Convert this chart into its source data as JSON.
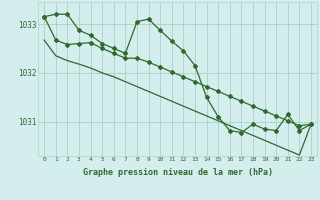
{
  "hours": [
    0,
    1,
    2,
    3,
    4,
    5,
    6,
    7,
    8,
    9,
    10,
    11,
    12,
    13,
    14,
    15,
    16,
    17,
    18,
    19,
    20,
    21,
    22,
    23
  ],
  "line_main": [
    1033.15,
    1033.2,
    1033.2,
    1032.87,
    1032.77,
    1032.6,
    1032.5,
    1032.4,
    1033.05,
    1033.1,
    1032.87,
    1032.65,
    1032.45,
    1032.15,
    1031.5,
    1031.1,
    1030.82,
    1030.78,
    1030.95,
    1030.85,
    1030.82,
    1031.15,
    1030.82,
    1030.95
  ],
  "line_diag1": [
    1033.15,
    1032.67,
    1032.58,
    1032.6,
    1032.62,
    1032.5,
    1032.4,
    1032.3,
    1032.3,
    1032.22,
    1032.12,
    1032.02,
    1031.92,
    1031.82,
    1031.72,
    1031.62,
    1031.52,
    1031.42,
    1031.32,
    1031.22,
    1031.12,
    1031.02,
    1030.92,
    1030.95
  ],
  "line_diag2": [
    1032.67,
    1032.35,
    1032.25,
    1032.18,
    1032.1,
    1032.0,
    1031.92,
    1031.82,
    1031.72,
    1031.62,
    1031.52,
    1031.42,
    1031.32,
    1031.22,
    1031.12,
    1031.02,
    1030.92,
    1030.82,
    1030.72,
    1030.62,
    1030.52,
    1030.42,
    1030.32,
    1030.95
  ],
  "line_color": "#2d6a2d",
  "bg_color": "#d4eeed",
  "grid_color": "#b0d4cc",
  "xlabel": "Graphe pression niveau de la mer (hPa)",
  "ylim": [
    1030.3,
    1033.45
  ],
  "yticks": [
    1031,
    1032,
    1033
  ],
  "xticks": [
    0,
    1,
    2,
    3,
    4,
    5,
    6,
    7,
    8,
    9,
    10,
    11,
    12,
    13,
    14,
    15,
    16,
    17,
    18,
    19,
    20,
    21,
    22,
    23
  ],
  "marker": "D",
  "markersize": 2.0,
  "linewidth": 0.9
}
